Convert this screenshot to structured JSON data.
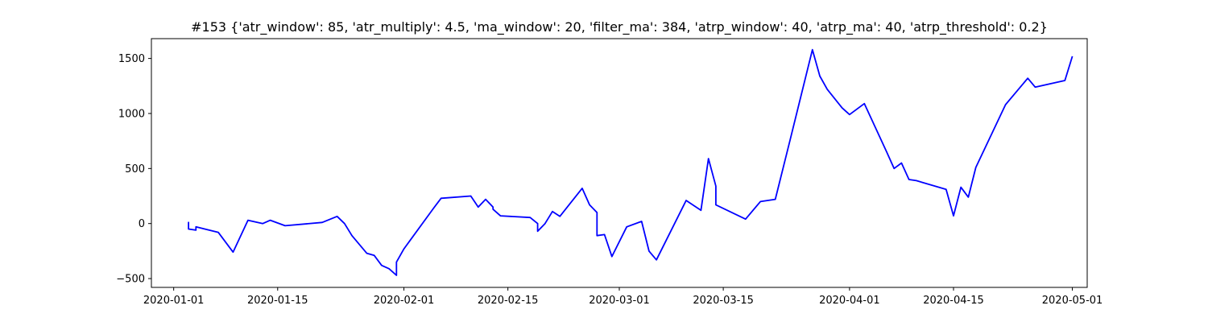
{
  "chart_data": {
    "type": "line",
    "title": "#153 {'atr_window': 85, 'atr_multiply': 4.5, 'ma_window': 20, 'filter_ma': 384, 'atrp_window': 40, 'atrp_ma': 40, 'atrp_threshold': 0.2}",
    "xlabel": "",
    "ylabel": "",
    "grid": false,
    "line_color": "#0000ff",
    "xlim": [
      "2019-12-29",
      "2020-05-03"
    ],
    "ylim": [
      -580,
      1680
    ],
    "x_ticks": [
      {
        "date": "2020-01-01",
        "label": "2020-01-01"
      },
      {
        "date": "2020-01-15",
        "label": "2020-01-15"
      },
      {
        "date": "2020-02-01",
        "label": "2020-02-01"
      },
      {
        "date": "2020-02-15",
        "label": "2020-02-15"
      },
      {
        "date": "2020-03-01",
        "label": "2020-03-01"
      },
      {
        "date": "2020-03-15",
        "label": "2020-03-15"
      },
      {
        "date": "2020-04-01",
        "label": "2020-04-01"
      },
      {
        "date": "2020-04-15",
        "label": "2020-04-15"
      },
      {
        "date": "2020-05-01",
        "label": "2020-05-01"
      }
    ],
    "y_ticks": [
      {
        "value": -500,
        "label": "−500"
      },
      {
        "value": 0,
        "label": "0"
      },
      {
        "value": 500,
        "label": "500"
      },
      {
        "value": 1000,
        "label": "1000"
      },
      {
        "value": 1500,
        "label": "1500"
      }
    ],
    "x": [
      "2020-01-03",
      "2020-01-03",
      "2020-01-03",
      "2020-01-04",
      "2020-01-04",
      "2020-01-04",
      "2020-01-07",
      "2020-01-09",
      "2020-01-11",
      "2020-01-13",
      "2020-01-14",
      "2020-01-16",
      "2020-01-21",
      "2020-01-23",
      "2020-01-24",
      "2020-01-25",
      "2020-01-27",
      "2020-01-28",
      "2020-01-29",
      "2020-01-30",
      "2020-01-31",
      "2020-01-31",
      "2020-02-01",
      "2020-02-05",
      "2020-02-06",
      "2020-02-10",
      "2020-02-11",
      "2020-02-12",
      "2020-02-13",
      "2020-02-13",
      "2020-02-14",
      "2020-02-18",
      "2020-02-19",
      "2020-02-19",
      "2020-02-20",
      "2020-02-21",
      "2020-02-22",
      "2020-02-25",
      "2020-02-26",
      "2020-02-27",
      "2020-02-27",
      "2020-02-28",
      "2020-02-29",
      "2020-03-02",
      "2020-03-04",
      "2020-03-05",
      "2020-03-06",
      "2020-03-10",
      "2020-03-12",
      "2020-03-13",
      "2020-03-14",
      "2020-03-14",
      "2020-03-18",
      "2020-03-20",
      "2020-03-22",
      "2020-03-24",
      "2020-03-27",
      "2020-03-28",
      "2020-03-29",
      "2020-03-31",
      "2020-04-01",
      "2020-04-03",
      "2020-04-06",
      "2020-04-07",
      "2020-04-08",
      "2020-04-09",
      "2020-04-10",
      "2020-04-14",
      "2020-04-15",
      "2020-04-16",
      "2020-04-17",
      "2020-04-18",
      "2020-04-22",
      "2020-04-25",
      "2020-04-26",
      "2020-04-30",
      "2020-05-01"
    ],
    "values": [
      0,
      10,
      -50,
      -60,
      -30,
      -30,
      -80,
      -260,
      30,
      0,
      30,
      -20,
      10,
      65,
      0,
      -110,
      -270,
      -290,
      -380,
      -410,
      -470,
      -350,
      -230,
      140,
      230,
      250,
      150,
      220,
      150,
      130,
      70,
      55,
      0,
      -70,
      0,
      110,
      65,
      320,
      170,
      100,
      -110,
      -100,
      -300,
      -30,
      20,
      -250,
      -330,
      210,
      120,
      590,
      340,
      170,
      40,
      200,
      220,
      760,
      1580,
      1340,
      1220,
      1050,
      990,
      1090,
      650,
      500,
      550,
      400,
      390,
      310,
      70,
      330,
      240,
      510,
      1080,
      1320,
      1240,
      1300,
      1520
    ]
  }
}
